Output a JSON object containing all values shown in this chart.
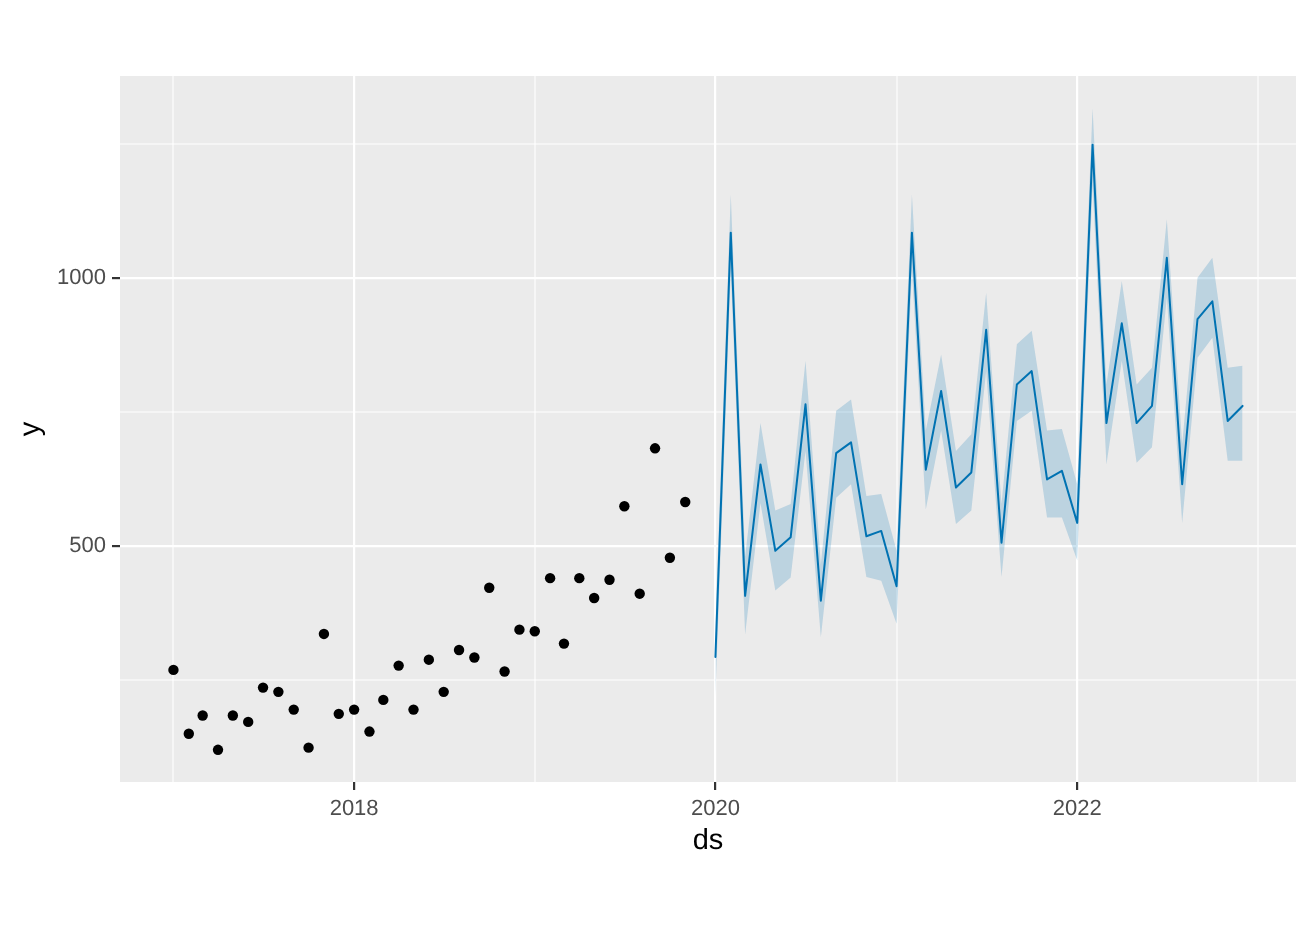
{
  "chart_data": {
    "type": "scatter",
    "xlabel": "ds",
    "ylabel": "y",
    "xlim": [
      "2016-09-15",
      "2023-03-19"
    ],
    "ylim": [
      60,
      1376
    ],
    "xticks": [
      {
        "value": "2017",
        "label": null
      },
      "2018",
      {
        "value": "2019",
        "label": null
      },
      "2020",
      {
        "value": "2021",
        "label": null
      },
      "2022",
      {
        "value": "2023",
        "label": null
      }
    ],
    "yticks": [
      {
        "value": 250,
        "label": null
      },
      500,
      {
        "value": 750,
        "label": null
      },
      1000,
      {
        "value": 1250,
        "label": null
      }
    ],
    "grid": true,
    "series": [
      {
        "color": "#000000",
        "marker": "circle",
        "x": [
          "2017-01",
          "2017-02",
          "2017-03",
          "2017-04",
          "2017-05",
          "2017-06",
          "2017-07",
          "2017-08",
          "2017-09",
          "2017-10",
          "2017-11",
          "2017-12",
          "2018-01",
          "2018-02",
          "2018-03",
          "2018-04",
          "2018-05",
          "2018-06",
          "2018-07",
          "2018-08",
          "2018-09",
          "2018-10",
          "2018-11",
          "2018-12",
          "2019-01",
          "2019-02",
          "2019-03",
          "2019-04",
          "2019-05",
          "2019-06",
          "2019-07",
          "2019-08",
          "2019-09",
          "2019-10",
          "2019-11"
        ],
        "values": [
          269,
          150,
          184,
          120,
          184,
          172,
          236,
          228,
          195,
          124,
          336,
          187,
          195,
          154,
          213,
          277,
          195,
          288,
          228,
          306,
          292,
          422,
          266,
          344,
          341,
          440,
          318,
          440,
          403,
          437,
          574,
          411,
          682,
          478,
          582
        ]
      },
      {
        "type": "line",
        "color": "#0072b2",
        "x": [
          "2020-01",
          "2020-02",
          "2020-03",
          "2020-04",
          "2020-05",
          "2020-06",
          "2020-07",
          "2020-08",
          "2020-09",
          "2020-10",
          "2020-11",
          "2020-12",
          "2021-01",
          "2021-02",
          "2021-03",
          "2021-04",
          "2021-05",
          "2021-06",
          "2021-07",
          "2021-08",
          "2021-09",
          "2021-10",
          "2021-11",
          "2021-12",
          "2022-01",
          "2022-02",
          "2022-03",
          "2022-04",
          "2022-05",
          "2022-06",
          "2022-07",
          "2022-08",
          "2022-09",
          "2022-10",
          "2022-11",
          "2022-12"
        ],
        "values": [
          293,
          1084,
          407,
          652,
          491,
          516,
          764,
          398,
          673,
          693,
          518,
          528,
          425,
          1084,
          642,
          789,
          609,
          637,
          903,
          506,
          801,
          826,
          624,
          640,
          543,
          1248,
          729,
          915,
          729,
          761,
          1037,
          615,
          923,
          956,
          733,
          761
        ],
        "lower": [
          218,
          1015,
          335,
          580,
          417,
          441,
          677,
          330,
          590,
          615,
          442,
          435,
          355,
          1015,
          568,
          715,
          541,
          566,
          826,
          442,
          733,
          752,
          553,
          553,
          473,
          1173,
          652,
          845,
          655,
          684,
          963,
          543,
          851,
          888,
          659,
          659
        ],
        "upper": [
          360,
          1155,
          480,
          729,
          566,
          578,
          845,
          466,
          752,
          773,
          593,
          597,
          491,
          1155,
          715,
          857,
          677,
          708,
          972,
          578,
          876,
          901,
          715,
          718,
          615,
          1316,
          801,
          994,
          801,
          832,
          1109,
          690,
          1000,
          1037,
          832,
          836
        ]
      }
    ]
  }
}
